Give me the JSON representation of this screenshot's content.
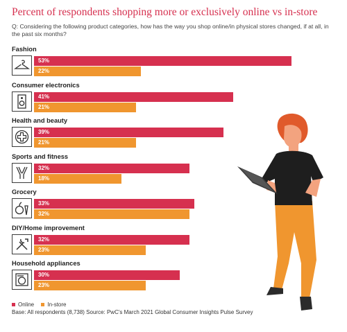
{
  "title": "Percent of respondents shopping more or exclusively online vs in-store",
  "question": "Q: Considering the following product categories, how has the way you shop online/in physical stores changed, if at all, in the past six months?",
  "colors": {
    "online": "#d6304f",
    "instore": "#f0962f",
    "title": "#d6304f"
  },
  "chart_data": {
    "type": "bar",
    "orientation": "horizontal",
    "title": "Percent of respondents shopping more or exclusively online vs in-store",
    "categories": [
      "Fashion",
      "Consumer electronics",
      "Health and beauty",
      "Sports and fitness",
      "Grocery",
      "DIY/Home improvement",
      "Household appliances"
    ],
    "icons": [
      "hanger-icon",
      "speaker-icon",
      "medical-cross-icon",
      "sports-icon",
      "grocery-icon",
      "tools-icon",
      "washing-machine-icon"
    ],
    "series": [
      {
        "name": "Online",
        "values": [
          53,
          41,
          39,
          32,
          33,
          32,
          30
        ],
        "labels": [
          "53%",
          "41%",
          "39%",
          "32%",
          "33%",
          "32%",
          "30%"
        ],
        "color": "#d6304f"
      },
      {
        "name": "In-store",
        "values": [
          22,
          21,
          21,
          18,
          32,
          23,
          23
        ],
        "labels": [
          "22%",
          "21%",
          "21%",
          "18%",
          "32%",
          "23%",
          "23%"
        ],
        "color": "#f0962f"
      }
    ],
    "xlim": [
      0,
      60
    ],
    "legend": "bottom-left",
    "grid": false
  },
  "legend": {
    "online": "Online",
    "instore": "In-store"
  },
  "footer": "Base: All respondents (8,738)   Source: PwC's March 2021 Global Consumer Insights Pulse Survey"
}
